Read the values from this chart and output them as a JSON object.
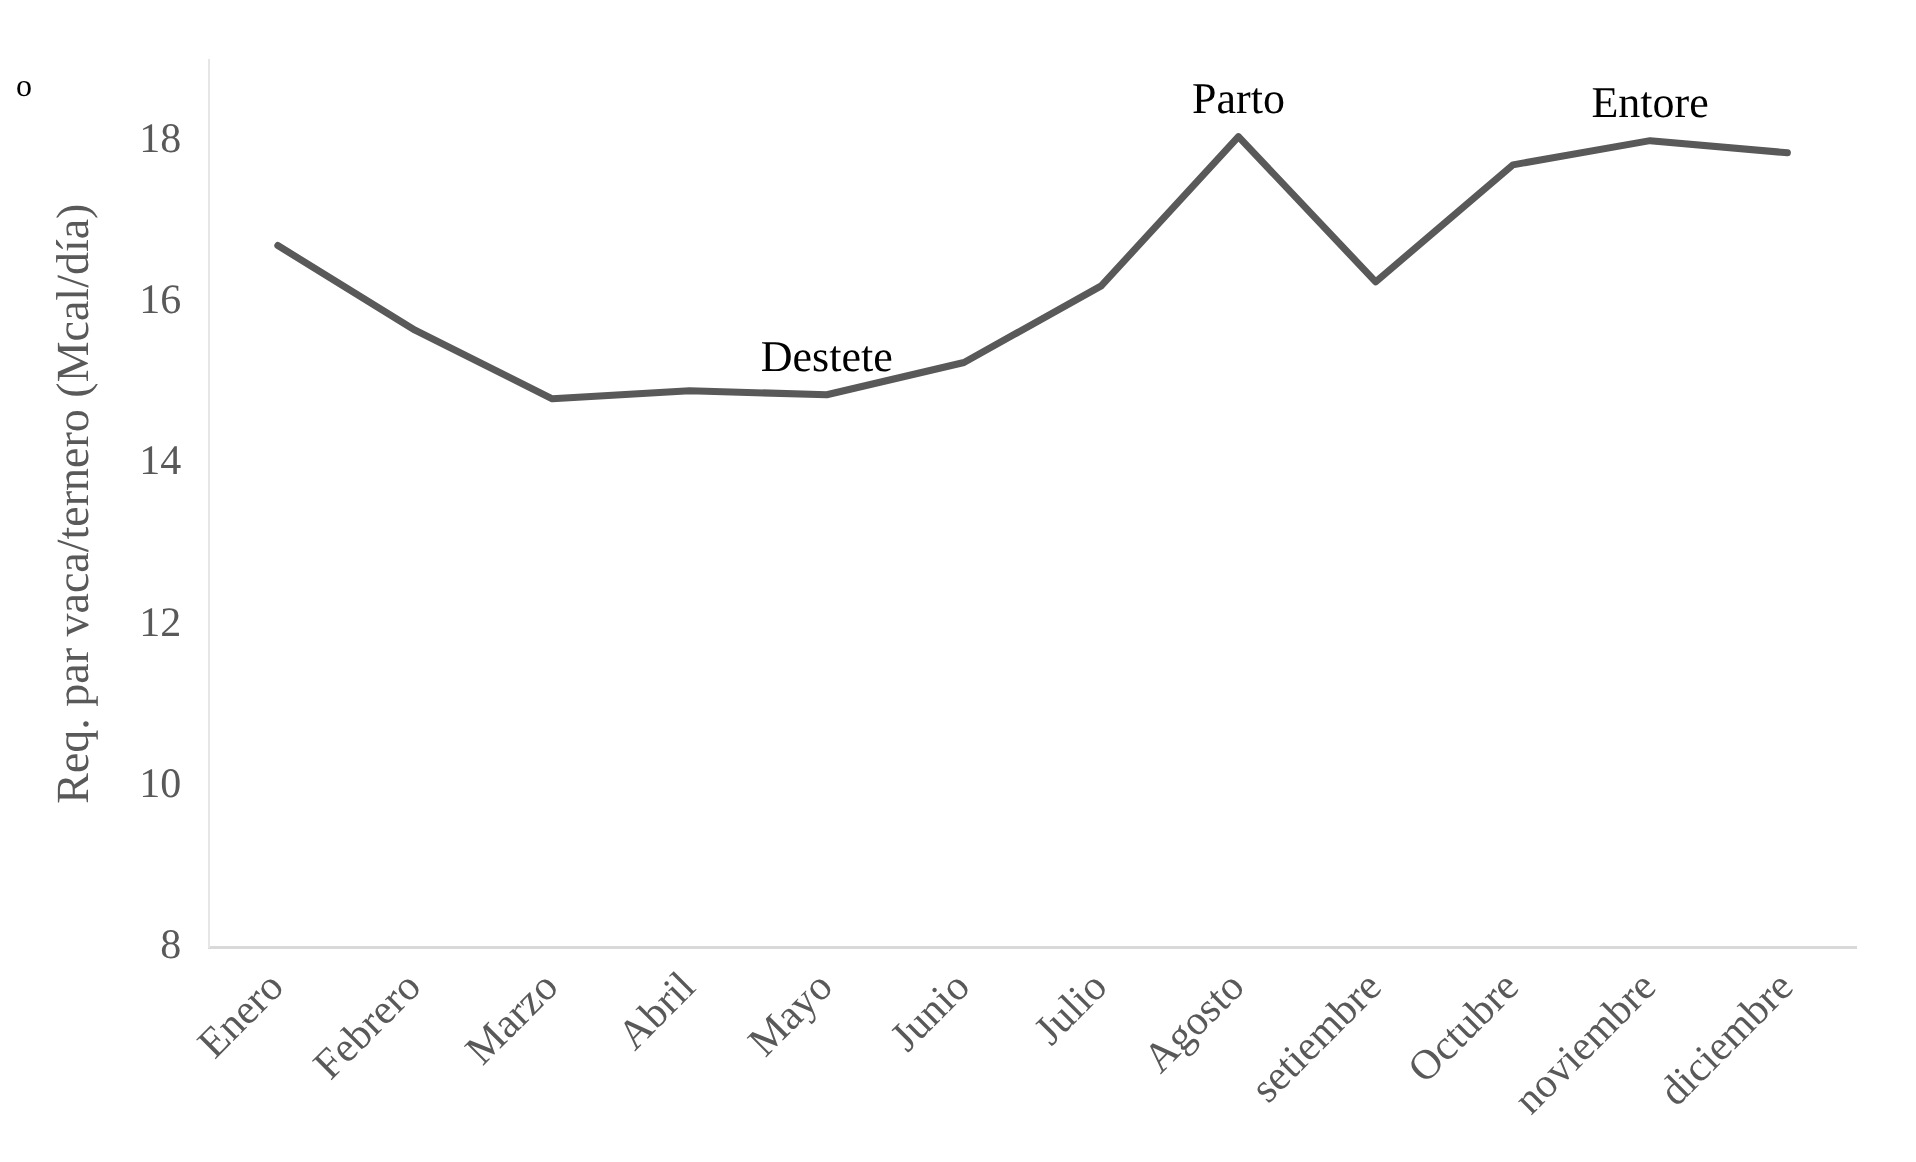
{
  "chart_data": {
    "type": "line",
    "ylabel": "Req. par vaca/ternero (Mcal/día)",
    "categories": [
      "Enero",
      "Febrero",
      "Marzo",
      "Abril",
      "Mayo",
      "Junio",
      "Julio",
      "Agosto",
      "setiembre",
      "Octubre",
      "noviembre",
      "diciembre"
    ],
    "series": [
      {
        "color": "#595959",
        "values": [
          16.7,
          15.65,
          14.8,
          14.9,
          14.85,
          15.25,
          16.2,
          18.05,
          16.25,
          17.7,
          18.0,
          17.85
        ]
      }
    ],
    "ylim": [
      8,
      19
    ],
    "yticks": [
      8,
      10,
      12,
      14,
      16,
      18
    ],
    "grid": false,
    "legend": false,
    "marker": "none",
    "line_style": "solid",
    "annotations": [
      "o",
      {
        "text": "Destete",
        "x": "Mayo",
        "y": 14.85
      },
      {
        "text": "Parto",
        "x": "Agosto",
        "y": 18.05
      },
      {
        "text": "Entore",
        "x": "noviembre",
        "y": 18.0
      }
    ]
  }
}
